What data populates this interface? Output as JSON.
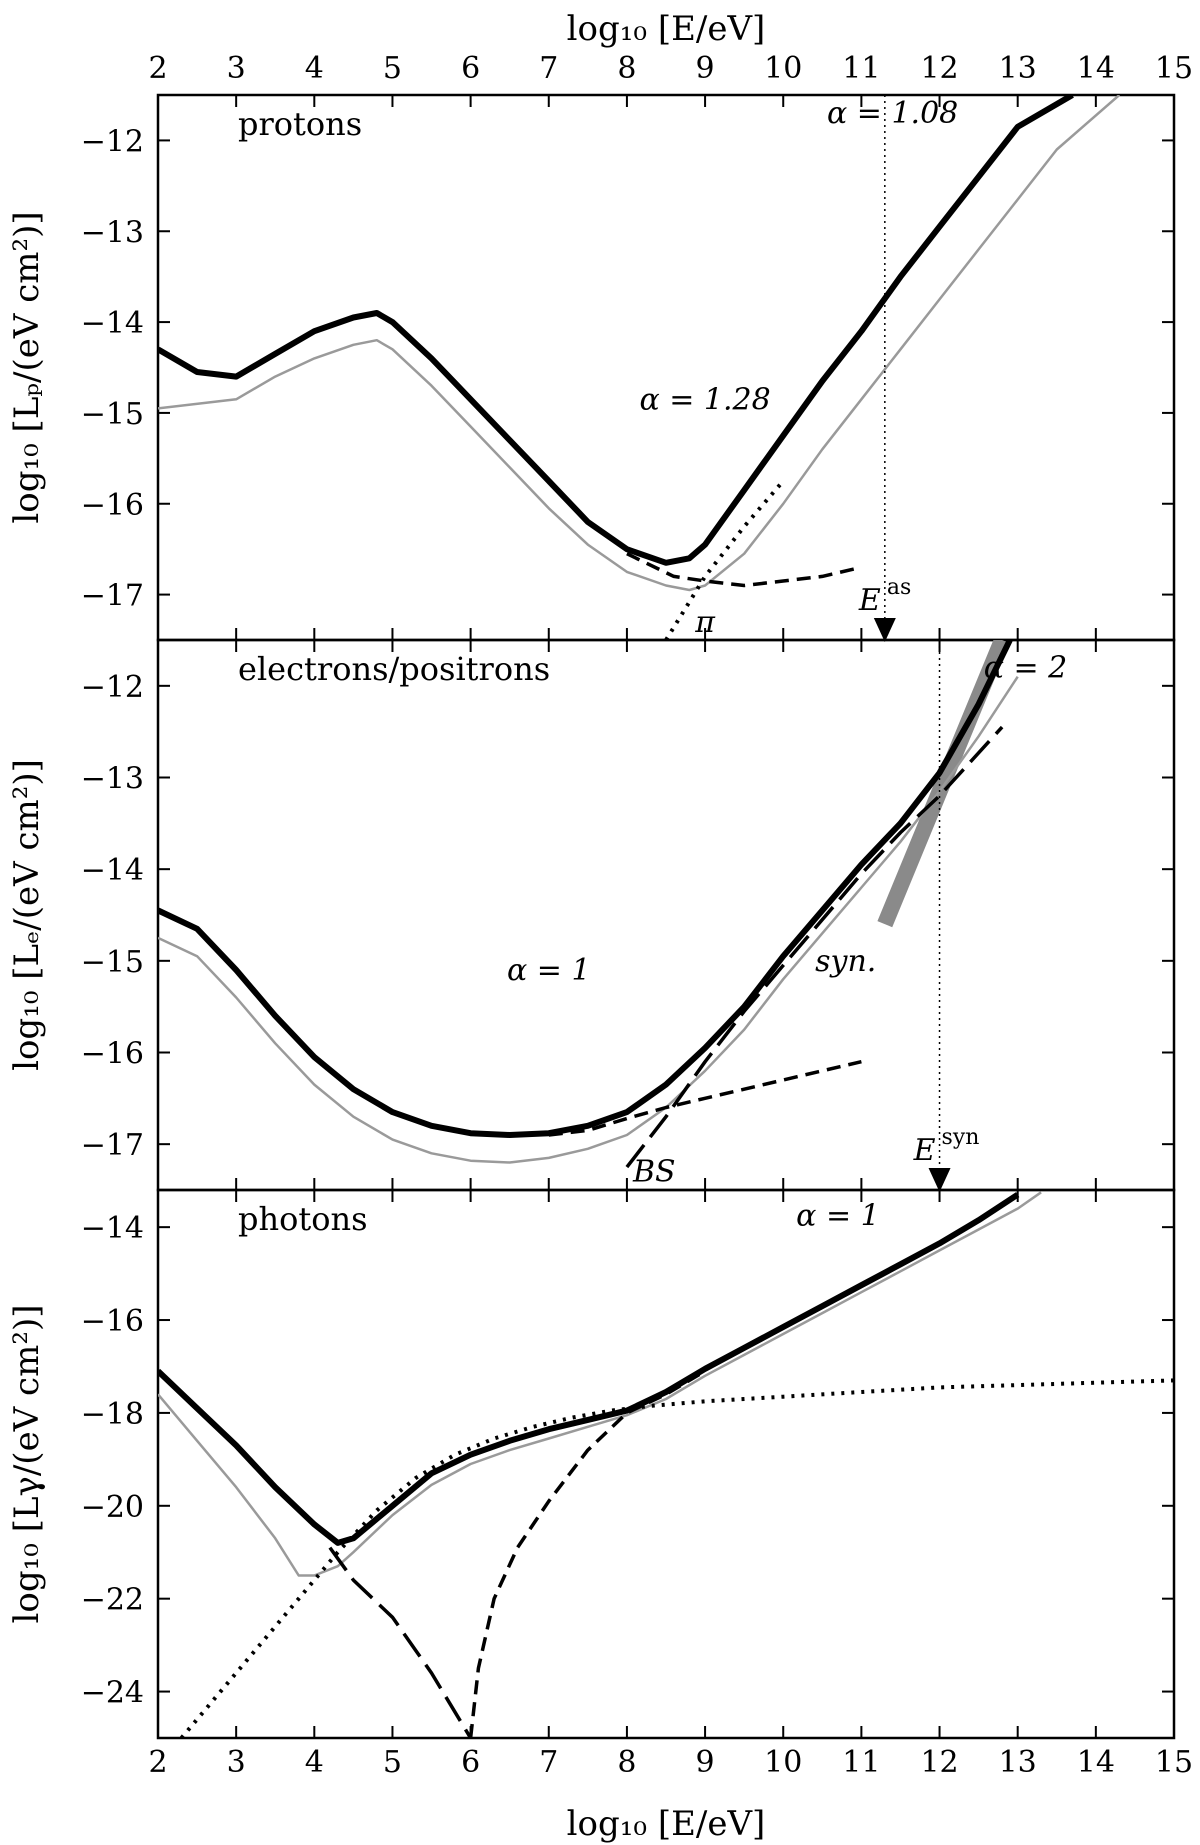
{
  "chart_data": {
    "type": "line",
    "xlabel_top": "log₁₀ [E/eV]",
    "xlabel_bottom": "log₁₀ [E/eV]",
    "xlim": [
      2,
      15
    ],
    "xticks": [
      2,
      3,
      4,
      5,
      6,
      7,
      8,
      9,
      10,
      11,
      12,
      13,
      14,
      15
    ],
    "panels": [
      {
        "id": "protons",
        "label": "protons",
        "ylabel": "log₁₀ [Lₚ/(eV cm²)]",
        "ylim": [
          -17.5,
          -11.5
        ],
        "yticks": [
          -12,
          -13,
          -14,
          -15,
          -16,
          -17
        ],
        "series": [
          {
            "name": "total",
            "style": "thick-solid",
            "x": [
              2,
              2.5,
              3,
              3.5,
              4,
              4.5,
              4.8,
              5,
              5.5,
              6,
              6.5,
              7,
              7.5,
              8,
              8.5,
              8.8,
              9,
              9.5,
              10,
              10.5,
              11,
              11.5,
              12,
              12.5,
              13,
              13.7
            ],
            "y": [
              -14.3,
              -14.55,
              -14.6,
              -14.35,
              -14.1,
              -13.95,
              -13.9,
              -14.0,
              -14.4,
              -14.85,
              -15.3,
              -15.75,
              -16.2,
              -16.5,
              -16.65,
              -16.6,
              -16.45,
              -15.85,
              -15.25,
              -14.65,
              -14.1,
              -13.5,
              -12.95,
              -12.4,
              -11.85,
              -11.5
            ]
          },
          {
            "name": "reference",
            "style": "thin-gray",
            "x": [
              2,
              3,
              3.5,
              4,
              4.5,
              4.8,
              5,
              5.5,
              6,
              6.5,
              7,
              7.5,
              8,
              8.5,
              8.8,
              9,
              9.5,
              10,
              10.5,
              11,
              11.5,
              12,
              12.5,
              13,
              13.5,
              14.3
            ],
            "y": [
              -14.95,
              -14.85,
              -14.6,
              -14.4,
              -14.25,
              -14.2,
              -14.3,
              -14.7,
              -15.15,
              -15.6,
              -16.05,
              -16.45,
              -16.75,
              -16.9,
              -16.95,
              -16.9,
              -16.55,
              -16.0,
              -15.4,
              -14.85,
              -14.3,
              -13.75,
              -13.2,
              -12.65,
              -12.1,
              -11.5
            ]
          },
          {
            "name": "dashed",
            "style": "dashed",
            "x": [
              8,
              8.6,
              9,
              9.5,
              10,
              10.5,
              11
            ],
            "y": [
              -16.55,
              -16.8,
              -16.85,
              -16.9,
              -16.85,
              -16.8,
              -16.7
            ]
          },
          {
            "name": "pion",
            "style": "dotted",
            "x": [
              8.5,
              9,
              9.5,
              10
            ],
            "y": [
              -17.5,
              -16.8,
              -16.25,
              -15.75
            ]
          }
        ],
        "vline": {
          "x": 11.3,
          "label_main": "E",
          "label_sup": "as"
        },
        "annotations": [
          {
            "text": "α = 1.08",
            "x": 11.4,
            "y": -11.7
          },
          {
            "text": "α = 1.28",
            "x": 9.0,
            "y": -14.85
          },
          {
            "text": "π",
            "x": 9.0,
            "y": -17.3
          }
        ]
      },
      {
        "id": "electrons",
        "label": "electrons/positrons",
        "ylabel": "log₁₀ [Lₑ/(eV cm²)]",
        "ylim": [
          -17.5,
          -11.5
        ],
        "yticks": [
          -12,
          -13,
          -14,
          -15,
          -16,
          -17
        ],
        "series": [
          {
            "name": "total",
            "style": "thick-solid",
            "x": [
              2,
              2.5,
              3,
              3.5,
              4,
              4.5,
              5,
              5.5,
              6,
              6.5,
              7,
              7.5,
              8,
              8.5,
              9,
              9.5,
              10,
              10.5,
              11,
              11.5,
              12,
              12.5,
              12.9
            ],
            "y": [
              -14.45,
              -14.65,
              -15.1,
              -15.6,
              -16.05,
              -16.4,
              -16.65,
              -16.8,
              -16.88,
              -16.9,
              -16.88,
              -16.8,
              -16.65,
              -16.35,
              -15.95,
              -15.5,
              -14.95,
              -14.45,
              -13.95,
              -13.5,
              -12.95,
              -12.2,
              -11.5
            ]
          },
          {
            "name": "reference",
            "style": "thin-gray",
            "x": [
              2,
              2.5,
              3,
              3.5,
              4,
              4.5,
              5,
              5.5,
              6,
              6.5,
              7,
              7.5,
              8,
              8.5,
              9,
              9.5,
              10,
              10.5,
              11,
              11.5,
              12,
              12.5,
              13
            ],
            "y": [
              -14.75,
              -14.95,
              -15.4,
              -15.9,
              -16.35,
              -16.7,
              -16.95,
              -17.1,
              -17.18,
              -17.2,
              -17.15,
              -17.05,
              -16.9,
              -16.6,
              -16.2,
              -15.75,
              -15.2,
              -14.7,
              -14.2,
              -13.7,
              -13.15,
              -12.55,
              -11.9
            ]
          },
          {
            "name": "dashed",
            "style": "dashed",
            "x": [
              7,
              7.5,
              8,
              8.5,
              9,
              9.5,
              10,
              10.5,
              11
            ],
            "y": [
              -16.9,
              -16.85,
              -16.72,
              -16.6,
              -16.5,
              -16.4,
              -16.3,
              -16.2,
              -16.1
            ]
          },
          {
            "name": "BS",
            "style": "long-dash",
            "x": [
              8,
              8.5,
              9,
              9.5,
              10,
              10.5,
              11,
              11.5,
              12,
              12.8
            ],
            "y": [
              -17.25,
              -16.7,
              -16.1,
              -15.55,
              -15.05,
              -14.55,
              -14.05,
              -13.6,
              -13.2,
              -12.45
            ]
          }
        ],
        "band": {
          "name": "syn.",
          "x": [
            11.3,
            12.8
          ],
          "y_center": [
            -14.6,
            -11.5
          ]
        },
        "vline": {
          "x": 12.0,
          "label_main": "E",
          "label_sup": "syn"
        },
        "annotations": [
          {
            "text": "α = 2",
            "x": 13.1,
            "y": -11.8
          },
          {
            "text": "α = 1",
            "x": 7.0,
            "y": -15.1
          },
          {
            "text": "syn.",
            "x": 10.8,
            "y": -15.0
          },
          {
            "text": "BS",
            "x": 8.35,
            "y": -17.3
          }
        ]
      },
      {
        "id": "photons",
        "label": "photons",
        "ylabel": "log₁₀ [Lγ/(eV cm²)]",
        "ylim": [
          -25,
          -13.2
        ],
        "yticks": [
          -14,
          -16,
          -18,
          -20,
          -22,
          -24
        ],
        "series": [
          {
            "name": "total",
            "style": "thick-solid",
            "x": [
              2,
              2.5,
              3,
              3.5,
              4,
              4.3,
              4.5,
              5,
              5.5,
              6,
              6.5,
              7,
              7.5,
              8,
              8.5,
              9,
              9.5,
              10,
              10.5,
              11,
              11.5,
              12,
              12.5,
              13
            ],
            "y": [
              -17.1,
              -17.9,
              -18.7,
              -19.6,
              -20.4,
              -20.8,
              -20.7,
              -20.0,
              -19.3,
              -18.9,
              -18.6,
              -18.35,
              -18.15,
              -17.95,
              -17.55,
              -17.05,
              -16.6,
              -16.15,
              -15.7,
              -15.25,
              -14.8,
              -14.35,
              -13.85,
              -13.3
            ]
          },
          {
            "name": "reference",
            "style": "thin-gray",
            "x": [
              2,
              2.5,
              3,
              3.5,
              3.8,
              4,
              4.3,
              4.5,
              5,
              5.5,
              6,
              6.5,
              7,
              7.5,
              8,
              8.5,
              9,
              9.5,
              10,
              10.5,
              11,
              11.5,
              12,
              12.5,
              13,
              13.3
            ],
            "y": [
              -17.6,
              -18.6,
              -19.6,
              -20.7,
              -21.5,
              -21.5,
              -21.3,
              -21.0,
              -20.2,
              -19.55,
              -19.1,
              -18.8,
              -18.55,
              -18.3,
              -18.05,
              -17.7,
              -17.2,
              -16.75,
              -16.3,
              -15.85,
              -15.4,
              -14.95,
              -14.5,
              -14.05,
              -13.6,
              -13.25
            ]
          },
          {
            "name": "dash-dot",
            "style": "long-dash",
            "x": [
              4.2,
              4.5,
              5,
              5.5,
              6
            ],
            "y": [
              -20.9,
              -21.6,
              -22.4,
              -23.6,
              -25
            ]
          },
          {
            "name": "dashed",
            "style": "dashed",
            "x": [
              6,
              6.1,
              6.3,
              6.6,
              7,
              7.5,
              8,
              8.5,
              9
            ],
            "y": [
              -25,
              -23.5,
              -22.0,
              -20.9,
              -19.9,
              -18.8,
              -18.0,
              -17.6,
              -17.1
            ]
          },
          {
            "name": "dotted",
            "style": "dotted",
            "x": [
              2.3,
              2.8,
              3.3,
              3.8,
              4.3,
              4.8,
              5.3,
              5.8,
              6.3,
              6.8,
              7.3,
              7.8,
              8.3,
              9,
              10,
              11,
              12,
              13,
              14,
              15
            ],
            "y": [
              -25,
              -24.0,
              -23.0,
              -22.0,
              -21.0,
              -20.1,
              -19.4,
              -18.9,
              -18.55,
              -18.3,
              -18.1,
              -17.95,
              -17.85,
              -17.75,
              -17.65,
              -17.55,
              -17.45,
              -17.4,
              -17.35,
              -17.3
            ]
          }
        ],
        "annotations": [
          {
            "text": "α = 1",
            "x": 10.7,
            "y": -13.75
          }
        ]
      }
    ]
  }
}
